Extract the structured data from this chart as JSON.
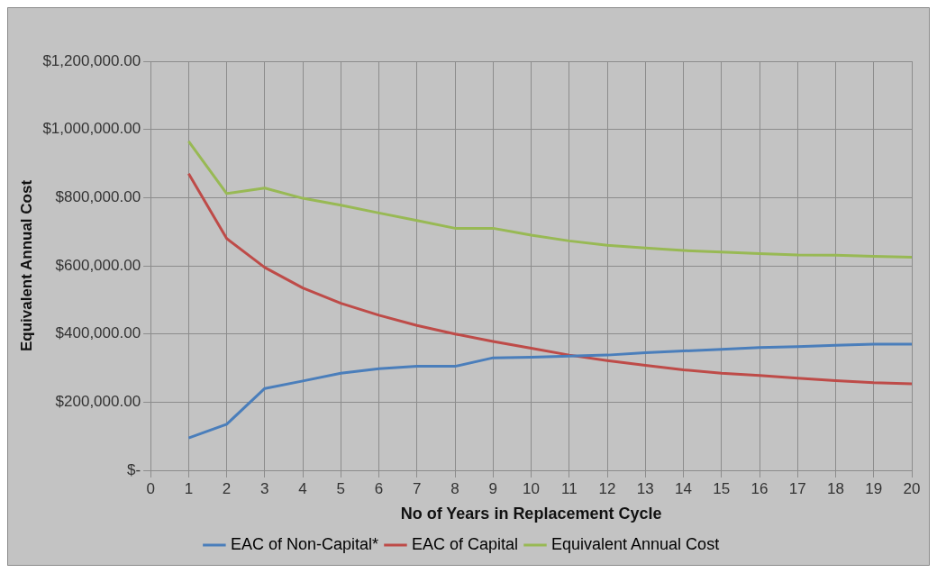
{
  "chart_data": {
    "type": "line",
    "xlabel": "No of Years in Replacement Cycle",
    "ylabel": "Equivalent Annual Cost",
    "x": [
      1,
      2,
      3,
      4,
      5,
      6,
      7,
      8,
      9,
      10,
      11,
      12,
      13,
      14,
      15,
      16,
      17,
      18,
      19,
      20
    ],
    "series": [
      {
        "name": "EAC of Non-Capital*",
        "color": "#4a7ebb",
        "values": [
          95000,
          135000,
          240000,
          262000,
          285000,
          298000,
          305000,
          305000,
          330000,
          332000,
          335000,
          338000,
          345000,
          350000,
          355000,
          360000,
          363000,
          367000,
          370000,
          370000
        ]
      },
      {
        "name": "EAC of Capital",
        "color": "#be4b48",
        "values": [
          870000,
          680000,
          595000,
          535000,
          490000,
          455000,
          425000,
          400000,
          378000,
          358000,
          338000,
          322000,
          308000,
          295000,
          285000,
          278000,
          270000,
          263000,
          257000,
          254000
        ]
      },
      {
        "name": "Equivalent Annual Cost",
        "color": "#98b954",
        "values": [
          965000,
          812000,
          828000,
          798000,
          778000,
          755000,
          733000,
          710000,
          710000,
          690000,
          673000,
          660000,
          652000,
          645000,
          640000,
          636000,
          632000,
          631000,
          628000,
          625000
        ]
      }
    ],
    "xlim": [
      0,
      20
    ],
    "xticks": [
      0,
      1,
      2,
      3,
      4,
      5,
      6,
      7,
      8,
      9,
      10,
      11,
      12,
      13,
      14,
      15,
      16,
      17,
      18,
      19,
      20
    ],
    "ylim": [
      0,
      1200000
    ],
    "yticks": [
      {
        "value": 0,
        "label": "$-"
      },
      {
        "value": 200000,
        "label": "$200,000.00"
      },
      {
        "value": 400000,
        "label": "$400,000.00"
      },
      {
        "value": 600000,
        "label": "$600,000.00"
      },
      {
        "value": 800000,
        "label": "$800,000.00"
      },
      {
        "value": 1000000,
        "label": "$1,000,000.00"
      },
      {
        "value": 1200000,
        "label": "$1,200,000.00"
      }
    ],
    "grid": true,
    "legend": "bottom",
    "marker": "none",
    "line_style": "solid"
  }
}
